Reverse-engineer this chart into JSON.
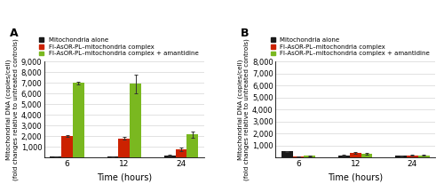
{
  "panel_A": {
    "label": "A",
    "ylabel": "Mitochondrial DNA (copies/cell)\n(fold changes relative to untreated controls)",
    "xlabel": "Time (hours)",
    "time_points": [
      "6",
      "12",
      "24"
    ],
    "black_values": [
      100,
      60,
      200
    ],
    "black_errors": [
      30,
      20,
      50
    ],
    "red_values": [
      2000,
      1800,
      750
    ],
    "red_errors": [
      100,
      120,
      150
    ],
    "green_values": [
      7000,
      6900,
      2150
    ],
    "green_errors": [
      130,
      900,
      280
    ],
    "ylim": [
      0,
      9000
    ],
    "yticks": [
      0,
      1000,
      2000,
      3000,
      4000,
      5000,
      6000,
      7000,
      8000,
      9000
    ]
  },
  "panel_B": {
    "label": "B",
    "ylabel": "Mitochondrial DNA (copies/cell)\n(fold changes relative to untreated controls)",
    "xlabel": "Time (hours)",
    "time_points": [
      "6",
      "12",
      "24"
    ],
    "black_values": [
      500,
      175,
      130
    ],
    "black_errors": [
      55,
      30,
      25
    ],
    "red_values": [
      80,
      380,
      175
    ],
    "red_errors": [
      25,
      70,
      40
    ],
    "green_values": [
      130,
      320,
      175
    ],
    "green_errors": [
      35,
      70,
      40
    ],
    "ylim": [
      0,
      8000
    ],
    "yticks": [
      0,
      1000,
      2000,
      3000,
      4000,
      5000,
      6000,
      7000,
      8000
    ]
  },
  "legend_labels": [
    "Mitochondria alone",
    "Fl-AsOR-PL–mitochondria complex",
    "Fl-AsOR-PL–mitochondria complex + amantidine"
  ],
  "bar_colors": [
    "#1a1a1a",
    "#cc2200",
    "#7ab820"
  ],
  "bar_width": 0.2,
  "bg_color": "#ffffff"
}
